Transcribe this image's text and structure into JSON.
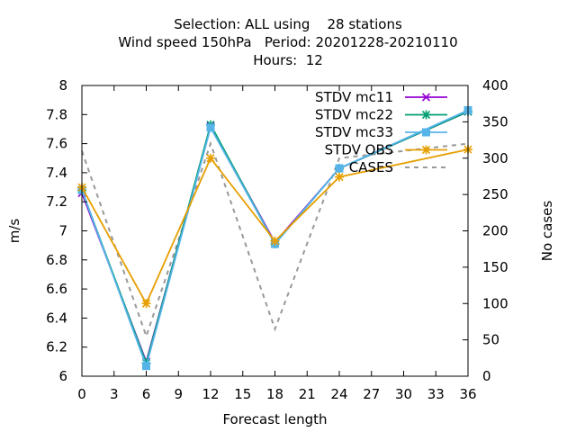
{
  "title_lines": [
    "Selection: ALL using    28 stations",
    "Wind speed 150hPa   Period: 20201228-20210110",
    "Hours:  12"
  ],
  "chart_data": {
    "type": "line",
    "xlabel": "Forecast length",
    "ylabel": "m/s",
    "y2label": "No cases",
    "xlim": [
      0,
      36
    ],
    "ylim": [
      6,
      8
    ],
    "y2lim": [
      0,
      400
    ],
    "x_ticks": [
      "0",
      "3",
      "6",
      "9",
      "12",
      "15",
      "18",
      "21",
      "24",
      "27",
      "30",
      "33",
      "36"
    ],
    "y_ticks": [
      "6",
      "6.2",
      "6.4",
      "6.6",
      "6.8",
      "7",
      "7.2",
      "7.4",
      "7.6",
      "7.8",
      "8"
    ],
    "y2_ticks": [
      "0",
      "50",
      "100",
      "150",
      "200",
      "250",
      "300",
      "350",
      "400"
    ],
    "legend_position": "top-right",
    "x": [
      0,
      6,
      12,
      18,
      24,
      36
    ],
    "series": [
      {
        "name": "STDV mc11",
        "axis": "left",
        "color": "#9400d3",
        "marker": "x",
        "values": [
          7.26,
          6.1,
          7.72,
          6.92,
          7.43,
          7.82
        ]
      },
      {
        "name": "STDV mc22",
        "axis": "left",
        "color": "#009e73",
        "marker": "asterisk",
        "values": [
          7.28,
          6.09,
          7.73,
          6.91,
          7.43,
          7.82
        ]
      },
      {
        "name": "STDV mc33",
        "axis": "left",
        "color": "#56b4e9",
        "marker": "box",
        "values": [
          7.28,
          6.07,
          7.71,
          6.91,
          7.43,
          7.83
        ]
      },
      {
        "name": "STDV OBS",
        "axis": "left",
        "color": "#e69f00",
        "marker": "asterisk",
        "values": [
          7.3,
          6.5,
          7.5,
          6.93,
          7.37,
          7.56
        ]
      },
      {
        "name": "CASES",
        "axis": "right",
        "color": "#999999",
        "marker": "none",
        "dashed": true,
        "values": [
          310,
          55,
          320,
          65,
          300,
          320
        ]
      }
    ]
  }
}
